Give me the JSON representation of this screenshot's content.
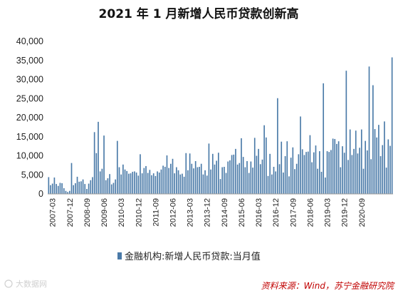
{
  "chart_data": {
    "type": "bar",
    "title": "2021 年 1 月新增人民币贷款创新高",
    "series": [
      {
        "name": "金融机构:新增人民币贷款:当月值",
        "color": "#4a7aa8",
        "values": [
          4400,
          2300,
          2700,
          4300,
          2600,
          2100,
          2900,
          2800,
          1500,
          800,
          500,
          800,
          8100,
          2300,
          2800,
          4500,
          3200,
          3300,
          3800,
          2600,
          1300,
          2700,
          3600,
          4400,
          16200,
          10700,
          18900,
          5900,
          6600,
          15300,
          3600,
          4100,
          5200,
          2500,
          2900,
          3800,
          13900,
          7000,
          5100,
          7700,
          6400,
          6000,
          5300,
          5400,
          5800,
          5900,
          5600,
          4800,
          10400,
          5400,
          6800,
          7300,
          5500,
          6300,
          4900,
          5400,
          4700,
          5900,
          5600,
          6400,
          7400,
          7100,
          10100,
          6800,
          7900,
          9200,
          5400,
          7000,
          6200,
          5100,
          5300,
          4500,
          10700,
          6200,
          10600,
          7900,
          6700,
          8600,
          7000,
          7100,
          7900,
          5100,
          6200,
          4800,
          13200,
          6400,
          10500,
          7700,
          8700,
          10800,
          3900,
          7000,
          7100,
          5500,
          8500,
          8800,
          10200,
          10300,
          11800,
          7700,
          8100,
          14600,
          9700,
          7000,
          8600,
          5500,
          8500,
          6900,
          14700,
          10000,
          11800,
          7800,
          9000,
          18000,
          14800,
          4700,
          10500,
          5100,
          7100,
          5900,
          25100,
          7800,
          13700,
          5600,
          9900,
          13800,
          4600,
          9500,
          12200,
          6500,
          7900,
          10400,
          20300,
          11700,
          10200,
          11000,
          11100,
          15400,
          8300,
          10900,
          12700,
          6600,
          11200,
          5800,
          29000,
          4300,
          11200,
          11000,
          11500,
          14500,
          14400,
          13100,
          13800,
          7000,
          12500,
          10800,
          32300,
          8900,
          16900,
          10200,
          11800,
          16600,
          10600,
          12100,
          16900,
          6600,
          13900,
          11400,
          33400,
          9100,
          28500,
          17000,
          14800,
          18100,
          9900,
          12800,
          19000,
          6900,
          14300,
          12600,
          35800
        ]
      }
    ],
    "x_start": "2007-01",
    "x_tick_labels": [
      "2007-03",
      "2007-12",
      "2008-09",
      "2009-06",
      "2010-03",
      "2010-12",
      "2011-09",
      "2012-06",
      "2013-03",
      "2013-12",
      "2014-09",
      "2015-06",
      "2016-03",
      "2016-12",
      "2017-09",
      "2018-06",
      "2019-03",
      "2019-12",
      "2020-09"
    ],
    "y_tick_labels": [
      "0",
      "5,000",
      "10,000",
      "15,000",
      "20,000",
      "25,000",
      "30,000",
      "35,000",
      "40,000"
    ],
    "ylim": [
      0,
      40000
    ],
    "grid": false,
    "legend_position": "bottom-center"
  },
  "source_text": "资料来源：Wind，苏宁金融研究院",
  "watermark_text": "大数据网"
}
